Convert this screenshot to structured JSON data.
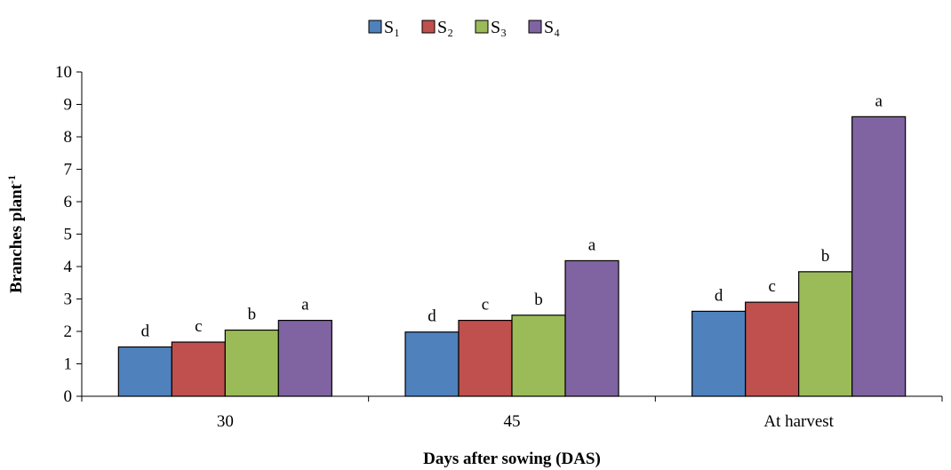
{
  "chart_data": {
    "type": "bar",
    "categories": [
      "30",
      "45",
      "At harvest"
    ],
    "series": [
      {
        "name": "S₁",
        "color": "#4f81bd",
        "values": [
          1.52,
          1.98,
          2.62
        ],
        "labels": [
          "d",
          "d",
          "d"
        ]
      },
      {
        "name": "S₂",
        "color": "#c0504d",
        "values": [
          1.67,
          2.34,
          2.9
        ],
        "labels": [
          "c",
          "c",
          "c"
        ]
      },
      {
        "name": "S₃",
        "color": "#9bbb59",
        "values": [
          2.04,
          2.5,
          3.84
        ],
        "labels": [
          "b",
          "b",
          "b"
        ]
      },
      {
        "name": "S₄",
        "color": "#8064a2",
        "values": [
          2.34,
          4.18,
          8.62
        ],
        "labels": [
          "a",
          "a",
          "a"
        ]
      }
    ],
    "title": "",
    "xlabel": "Days after sowing (DAS)",
    "ylabel": "Branches plant",
    "ylabel_superscript": "-1",
    "ylim": [
      0,
      10
    ],
    "yticks": [
      "0",
      "1",
      "2",
      "3",
      "4",
      "5",
      "6",
      "7",
      "8",
      "9",
      "10"
    ],
    "grid": false,
    "legend_position": "top-center"
  }
}
